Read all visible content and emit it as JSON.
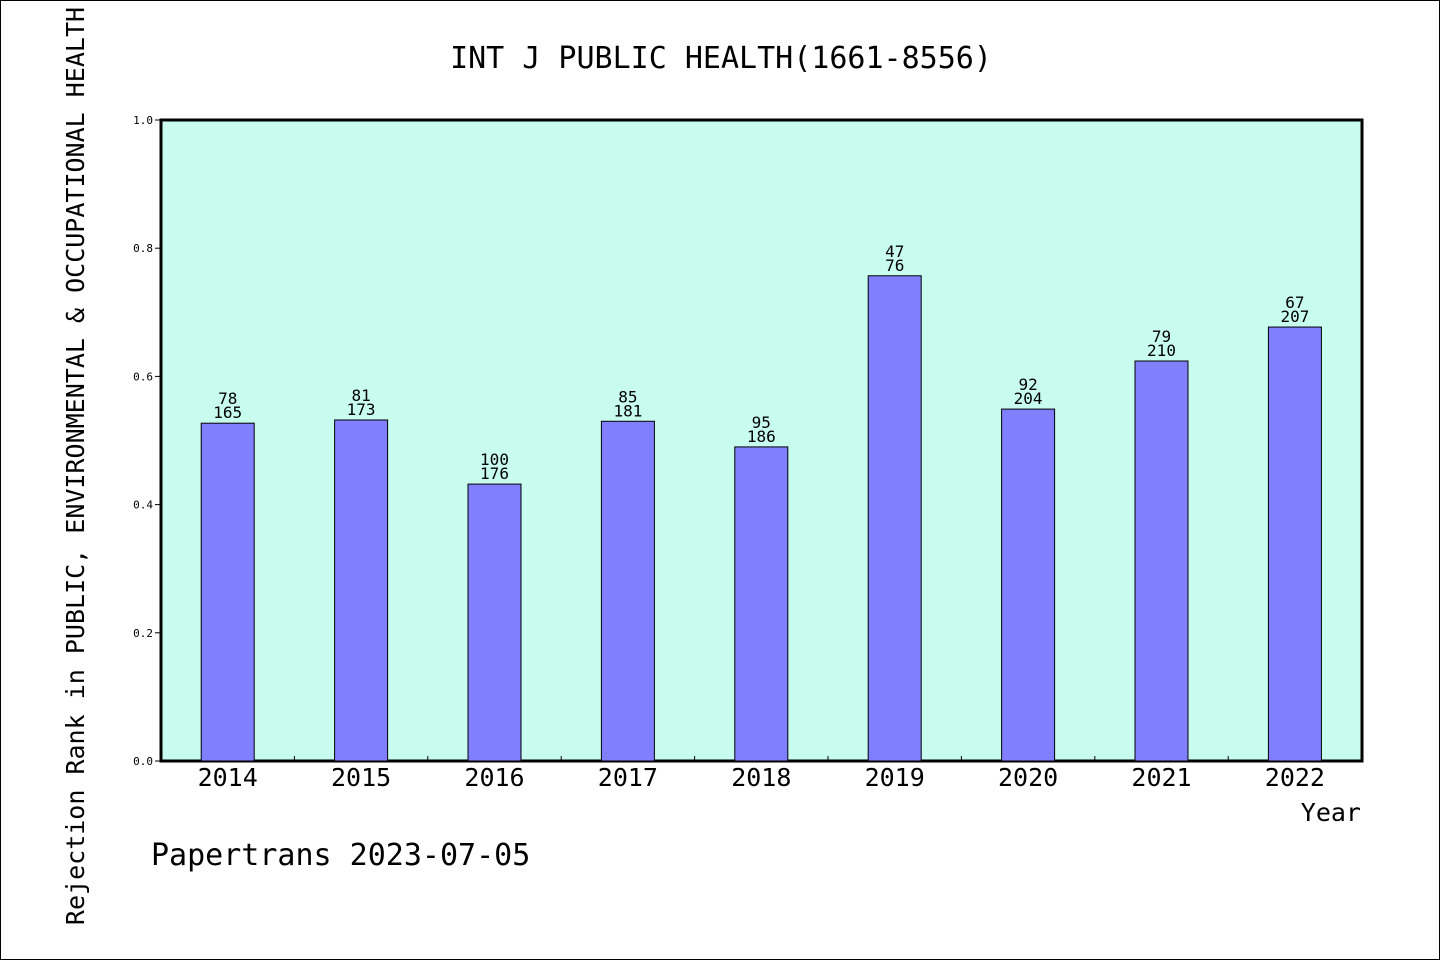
{
  "chart_data": {
    "type": "bar",
    "title": "INT J PUBLIC HEALTH(1661-8556)",
    "xlabel": "Year",
    "ylabel": "Rejection Rank in PUBLIC, ENVIRONMENTAL & OCCUPATIONAL HEALTH",
    "ylim": [
      0,
      1.0
    ],
    "yticks": [
      "0.0",
      "0.2",
      "0.4",
      "0.6",
      "0.8",
      "1.0"
    ],
    "categories": [
      "2014",
      "2015",
      "2016",
      "2017",
      "2018",
      "2019",
      "2020",
      "2021",
      "2022"
    ],
    "values": [
      0.527,
      0.532,
      0.432,
      0.53,
      0.49,
      0.757,
      0.549,
      0.624,
      0.677
    ],
    "labels_top": [
      "78",
      "81",
      "100",
      "85",
      "95",
      "47",
      "92",
      "79",
      "67"
    ],
    "labels_bottom": [
      "165",
      "173",
      "176",
      "181",
      "186",
      "76",
      "204",
      "210",
      "207"
    ],
    "grid": false,
    "colors": {
      "plot_background": "#c8fcef",
      "bar_fill": "#8080ff",
      "bar_stroke": "#000000"
    }
  },
  "footer": {
    "credit": "Papertrans 2023-07-05"
  }
}
